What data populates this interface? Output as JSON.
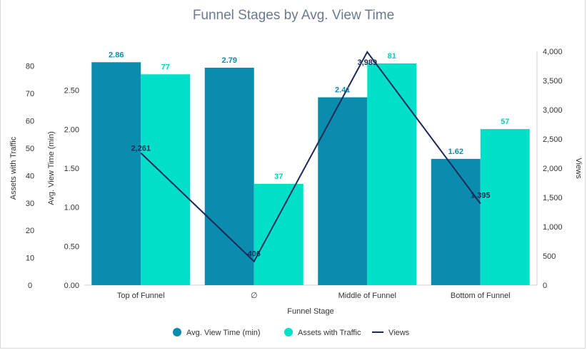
{
  "chart_data": {
    "type": "bar",
    "title": "Funnel Stages by Avg. View Time",
    "xlabel": "Funnel Stage",
    "categories": [
      "Top of Funnel",
      "∅",
      "Middle of Funnel",
      "Bottom of Funnel"
    ],
    "series": [
      {
        "name": "Avg. View Time (min)",
        "type": "bar",
        "axis": "left-inner",
        "color": "#0a8caf",
        "label_color": "#0a8caf",
        "values": [
          2.86,
          2.79,
          2.41,
          1.62
        ],
        "labels": [
          "2.86",
          "2.79",
          "2.41",
          "1.62"
        ]
      },
      {
        "name": "Assets with Traffic",
        "type": "bar",
        "axis": "left-outer",
        "color": "#00e0c8",
        "label_color": "#00d3bd",
        "values": [
          77,
          37,
          81,
          57
        ],
        "labels": [
          "77",
          "37",
          "81",
          "57"
        ]
      },
      {
        "name": "Views",
        "type": "line",
        "axis": "right",
        "color": "#1b2a5a",
        "values": [
          2261,
          406,
          3989,
          1395
        ],
        "labels": [
          "2,261",
          "406",
          "3,989",
          "1,395"
        ]
      }
    ],
    "axes": {
      "left_outer": {
        "label": "Assets with Traffic",
        "range": [
          0,
          85.4
        ],
        "ticks": [
          0,
          10,
          20,
          30,
          40,
          50,
          60,
          70,
          80
        ],
        "tick_labels": [
          "0",
          "10",
          "20",
          "30",
          "40",
          "50",
          "60",
          "70",
          "80"
        ]
      },
      "left_inner": {
        "label": "Avg. View Time (min)",
        "range": [
          0,
          3.0
        ],
        "ticks": [
          0,
          0.5,
          1.0,
          1.5,
          2.0,
          2.5
        ],
        "tick_labels": [
          "0.00",
          "0.50",
          "1.00",
          "1.50",
          "2.00",
          "2.50"
        ]
      },
      "right": {
        "label": "Views",
        "range": [
          0,
          4000
        ],
        "ticks": [
          0,
          500,
          1000,
          1500,
          2000,
          2500,
          3000,
          3500,
          4000
        ],
        "tick_labels": [
          "0",
          "500",
          "1,000",
          "1,500",
          "2,000",
          "2,500",
          "3,000",
          "3,500",
          "4,000"
        ]
      }
    },
    "grid": false,
    "legend": {
      "position": "bottom",
      "items": [
        "Avg. View Time (min)",
        "Assets with Traffic",
        "Views"
      ]
    }
  }
}
